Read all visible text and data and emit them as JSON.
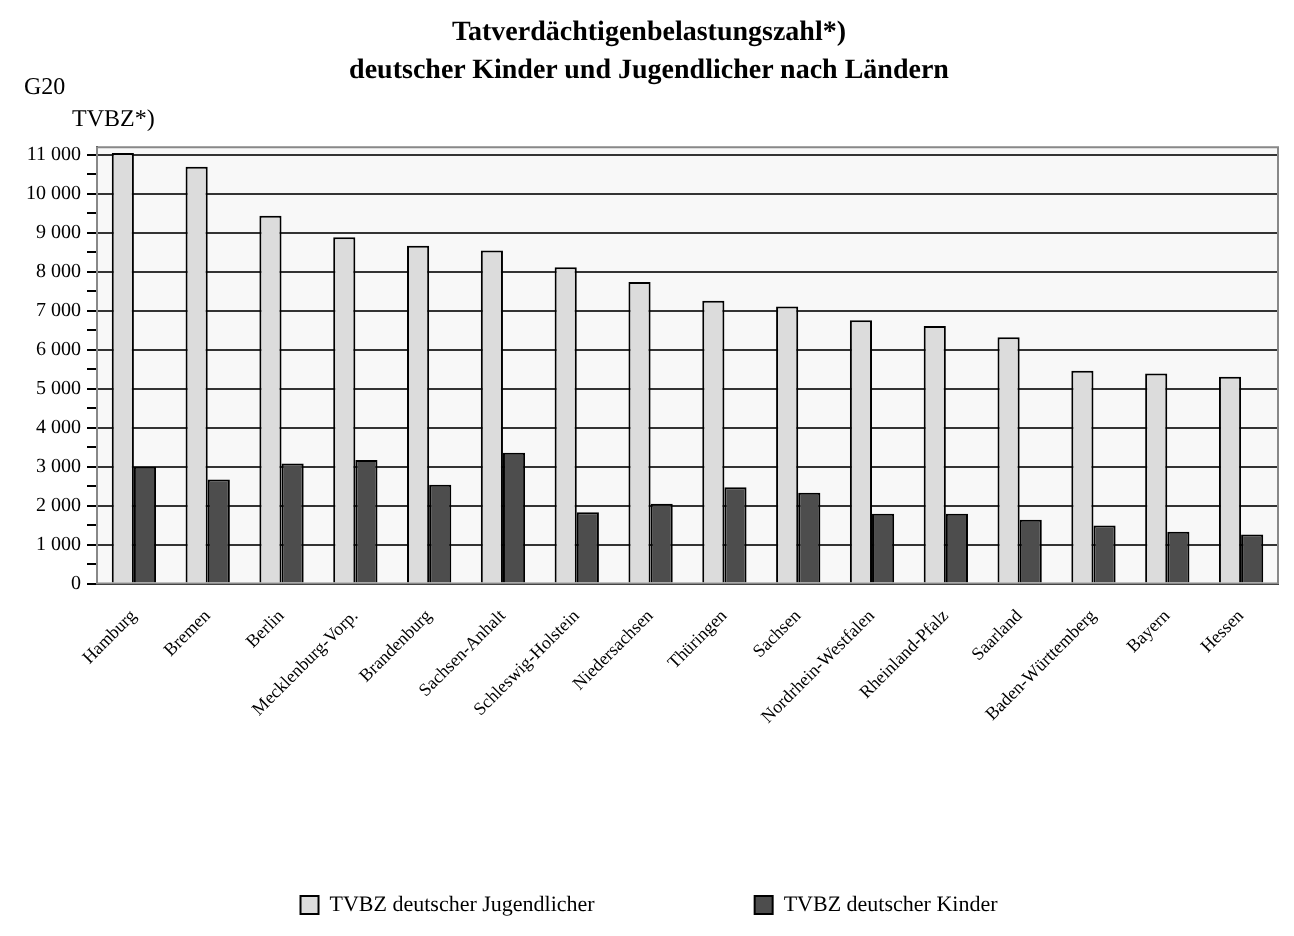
{
  "chart_data": {
    "type": "bar",
    "title": "Tatverdächtigenbelastungszahl*)",
    "subtitle": "deutscher Kinder und Jugendlicher nach Ländern",
    "ylabel": "TVBZ*)",
    "annotations": [
      "G20"
    ],
    "categories": [
      "Hamburg",
      "Bremen",
      "Berlin",
      "Mecklenburg-Vorp.",
      "Brandenburg",
      "Sachsen-Anhalt",
      "Schleswig-Holstein",
      "Niedersachsen",
      "Thüringen",
      "Sachsen",
      "Nordrhein-Westfalen",
      "Rheinland-Pfalz",
      "Saarland",
      "Baden-Württemberg",
      "Bayern",
      "Hessen"
    ],
    "series": [
      {
        "name": "TVBZ deutscher Jugendlicher",
        "color": "#dcdcdc",
        "values": [
          11050,
          10700,
          9440,
          8890,
          8670,
          8550,
          8120,
          7740,
          7260,
          7110,
          6760,
          6610,
          6320,
          5460,
          5390,
          5310
        ]
      },
      {
        "name": "TVBZ deutscher Kinder",
        "color": "#4d4d4d",
        "values": [
          3000,
          2670,
          3080,
          3170,
          2540,
          3360,
          1830,
          2050,
          2470,
          2330,
          1790,
          1790,
          1640,
          1490,
          1330,
          1260
        ]
      }
    ],
    "ylim": [
      0,
      11200
    ],
    "yticks": [
      {
        "value": 0,
        "label": "0"
      },
      {
        "value": 500,
        "label": null
      },
      {
        "value": 1000,
        "label": "1 000"
      },
      {
        "value": 1500,
        "label": null
      },
      {
        "value": 2000,
        "label": "2 000"
      },
      {
        "value": 2500,
        "label": null
      },
      {
        "value": 3000,
        "label": "3 000"
      },
      {
        "value": 3500,
        "label": null
      },
      {
        "value": 4000,
        "label": "4 000"
      },
      {
        "value": 4500,
        "label": null
      },
      {
        "value": 5000,
        "label": "5 000"
      },
      {
        "value": 5500,
        "label": null
      },
      {
        "value": 6000,
        "label": "6 000"
      },
      {
        "value": 6500,
        "label": null
      },
      {
        "value": 7000,
        "label": "7 000"
      },
      {
        "value": 7500,
        "label": null
      },
      {
        "value": 8000,
        "label": "8 000"
      },
      {
        "value": 8500,
        "label": null
      },
      {
        "value": 9000,
        "label": "9 000"
      },
      {
        "value": 9500,
        "label": null
      },
      {
        "value": 10000,
        "label": "10 000"
      },
      {
        "value": 10500,
        "label": null
      },
      {
        "value": 11000,
        "label": "11 000"
      }
    ],
    "grid": "y",
    "legend": "bottom"
  }
}
